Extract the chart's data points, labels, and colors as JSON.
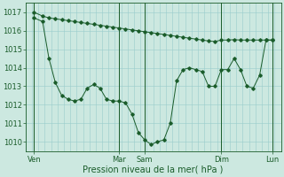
{
  "background_color": "#cce8e0",
  "grid_color": "#99cccc",
  "line_color": "#1a5c2a",
  "xlabel": "Pression niveau de la mer( hPa )",
  "xlabel_fontsize": 7,
  "tick_fontsize": 6,
  "ylim": [
    1009.5,
    1017.5
  ],
  "yticks": [
    1010,
    1011,
    1012,
    1013,
    1014,
    1015,
    1016,
    1017
  ],
  "xlim": [
    0,
    240
  ],
  "day_positions": [
    8,
    88,
    112,
    184,
    232
  ],
  "day_labels": [
    "Ven",
    "Mar",
    "Sam",
    "Dim",
    "Lun"
  ],
  "vline_positions": [
    8,
    88,
    112,
    184,
    232
  ],
  "line1_x": [
    8,
    16,
    22,
    28,
    34,
    40,
    46,
    52,
    58,
    64,
    70,
    76,
    82,
    88,
    94,
    100,
    106,
    112,
    118,
    124,
    130,
    136,
    142,
    148,
    154,
    160,
    166,
    172,
    178,
    184,
    190,
    196,
    202,
    208,
    214,
    220,
    226,
    232
  ],
  "line1_y": [
    1017.0,
    1016.8,
    1016.7,
    1016.65,
    1016.6,
    1016.55,
    1016.5,
    1016.45,
    1016.4,
    1016.35,
    1016.3,
    1016.25,
    1016.2,
    1016.15,
    1016.1,
    1016.05,
    1016.0,
    1015.95,
    1015.9,
    1015.85,
    1015.8,
    1015.75,
    1015.7,
    1015.65,
    1015.6,
    1015.55,
    1015.5,
    1015.45,
    1015.42,
    1015.5,
    1015.5,
    1015.52,
    1015.5,
    1015.5,
    1015.5,
    1015.5,
    1015.5,
    1015.5
  ],
  "line2_x": [
    8,
    16,
    22,
    28,
    34,
    40,
    46,
    52,
    58,
    64,
    70,
    76,
    82,
    88,
    94,
    100,
    106,
    112,
    118,
    124,
    130,
    136,
    142,
    148,
    154,
    160,
    166,
    172,
    178,
    184,
    190,
    196,
    202,
    208,
    214,
    220,
    226,
    232
  ],
  "line2_y": [
    1016.7,
    1016.5,
    1014.5,
    1013.2,
    1012.5,
    1012.3,
    1012.2,
    1012.3,
    1012.9,
    1013.1,
    1012.9,
    1012.3,
    1012.2,
    1012.2,
    1012.1,
    1011.5,
    1010.5,
    1010.1,
    1009.85,
    1010.0,
    1010.1,
    1011.0,
    1013.3,
    1013.9,
    1014.0,
    1013.9,
    1013.8,
    1013.0,
    1013.0,
    1013.9,
    1013.9,
    1014.5,
    1013.9,
    1013.0,
    1012.9,
    1013.6,
    1015.5,
    1015.5
  ]
}
